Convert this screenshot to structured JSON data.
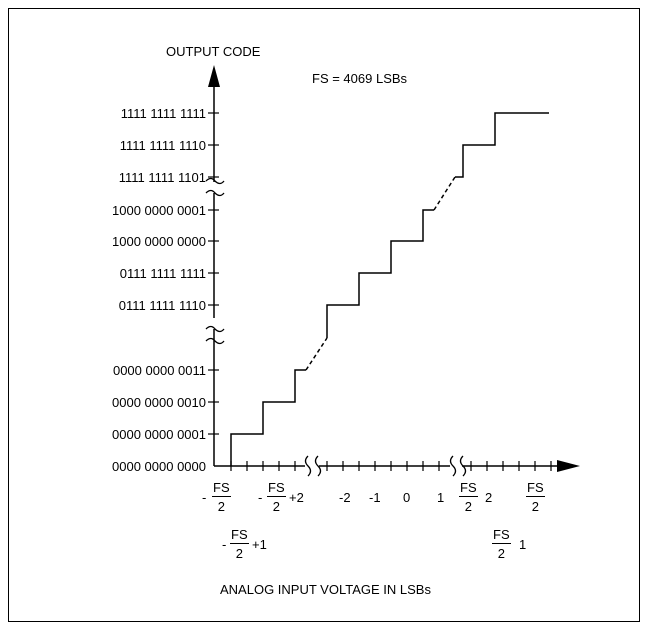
{
  "y_axis_title": "OUTPUT CODE",
  "fs_note": "FS = 4069 LSBs",
  "x_axis_title": "ANALOG INPUT VOLTAGE IN LSBs",
  "y_codes": [
    "1111 1111 1111",
    "1111 1111 1110",
    "1111 1111 1101",
    "1000 0000 0001",
    "1000 0000 0000",
    "0111 1111 1111",
    "0111 1111 1110",
    "0000 0000 0011",
    "0000 0000 0010",
    "0000 0000 0001",
    "0000 0000 0000"
  ],
  "x_labels": {
    "neg_fs2_sign": "-",
    "neg_fs2_num": "FS",
    "neg_fs2_den": "2",
    "neg_fs2p2_sign": "-",
    "neg_fs2p2_num": "FS",
    "neg_fs2p2_den": "2",
    "neg_fs2p2_suffix": "+2",
    "minus2": "-2",
    "minus1": "-1",
    "zero": "0",
    "one": "1",
    "fs2m2_num": "FS",
    "fs2m2_den": "2",
    "fs2m2_suffix": "2",
    "fs2_num": "FS",
    "fs2_den": "2",
    "neg_fs2p1_sign": "-",
    "neg_fs2p1_num": "FS",
    "neg_fs2p1_den": "2",
    "neg_fs2p1_suffix": "+1",
    "fs2m1_num": "FS",
    "fs2m1_den": "2",
    "fs2m1_suffix": "1"
  }
}
